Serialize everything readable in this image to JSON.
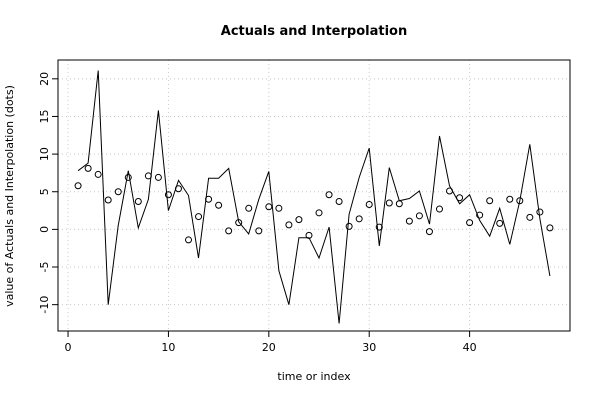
{
  "chart_data": {
    "type": "line",
    "title": "Actuals and Interpolation",
    "xlabel": "time or index",
    "ylabel": "value of Actuals and Interpolation (dots)",
    "xlim": [
      -1,
      50
    ],
    "ylim": [
      -13.5,
      22.5
    ],
    "xticks": [
      0,
      10,
      20,
      30,
      40
    ],
    "yticks": [
      -10,
      -5,
      0,
      5,
      10,
      15,
      20
    ],
    "grid": true,
    "series": [
      {
        "style": "line",
        "color": "#000000",
        "x": [
          1,
          2,
          3,
          4,
          5,
          6,
          7,
          8,
          9,
          10,
          11,
          12,
          13,
          14,
          15,
          16,
          17,
          18,
          19,
          20,
          21,
          22,
          23,
          24,
          25,
          26,
          27,
          28,
          29,
          30,
          31,
          32,
          33,
          34,
          35,
          36,
          37,
          38,
          39,
          40,
          41,
          42,
          43,
          44,
          45,
          46,
          47,
          48
        ],
        "y": [
          7.8,
          8.8,
          21.1,
          -10.0,
          0.5,
          7.8,
          0.2,
          4.0,
          15.8,
          2.5,
          6.5,
          4.5,
          -3.8,
          6.8,
          6.8,
          8.1,
          1.0,
          -0.6,
          4.0,
          7.7,
          -5.5,
          -10.0,
          -1.1,
          -1.1,
          -3.8,
          0.3,
          -12.5,
          2.0,
          6.9,
          10.8,
          -2.2,
          8.2,
          3.8,
          4.1,
          5.1,
          0.7,
          12.4,
          5.8,
          3.4,
          4.6,
          1.2,
          -0.9,
          2.8,
          -2.0,
          3.8,
          11.3,
          1.4,
          -6.2
        ]
      },
      {
        "style": "points",
        "color": "#000000",
        "x": [
          1,
          2,
          3,
          4,
          5,
          6,
          7,
          8,
          9,
          10,
          11,
          12,
          13,
          14,
          15,
          16,
          17,
          18,
          19,
          20,
          21,
          22,
          23,
          24,
          25,
          26,
          27,
          28,
          29,
          30,
          31,
          32,
          33,
          34,
          35,
          36,
          37,
          38,
          39,
          40,
          41,
          42,
          43,
          44,
          45,
          46,
          47,
          48
        ],
        "y": [
          5.8,
          8.1,
          7.3,
          3.9,
          5.0,
          6.9,
          3.7,
          7.1,
          6.9,
          4.6,
          5.4,
          -1.4,
          1.7,
          4.0,
          3.2,
          -0.2,
          0.9,
          2.8,
          -0.2,
          3.0,
          2.8,
          0.6,
          1.3,
          -0.8,
          2.2,
          4.6,
          3.7,
          0.4,
          1.4,
          3.3,
          0.3,
          3.5,
          3.4,
          1.1,
          1.8,
          -0.3,
          2.7,
          5.1,
          4.2,
          0.9,
          1.9,
          3.8,
          0.8,
          4.0,
          3.8,
          1.6,
          2.3,
          0.2
        ]
      }
    ]
  }
}
